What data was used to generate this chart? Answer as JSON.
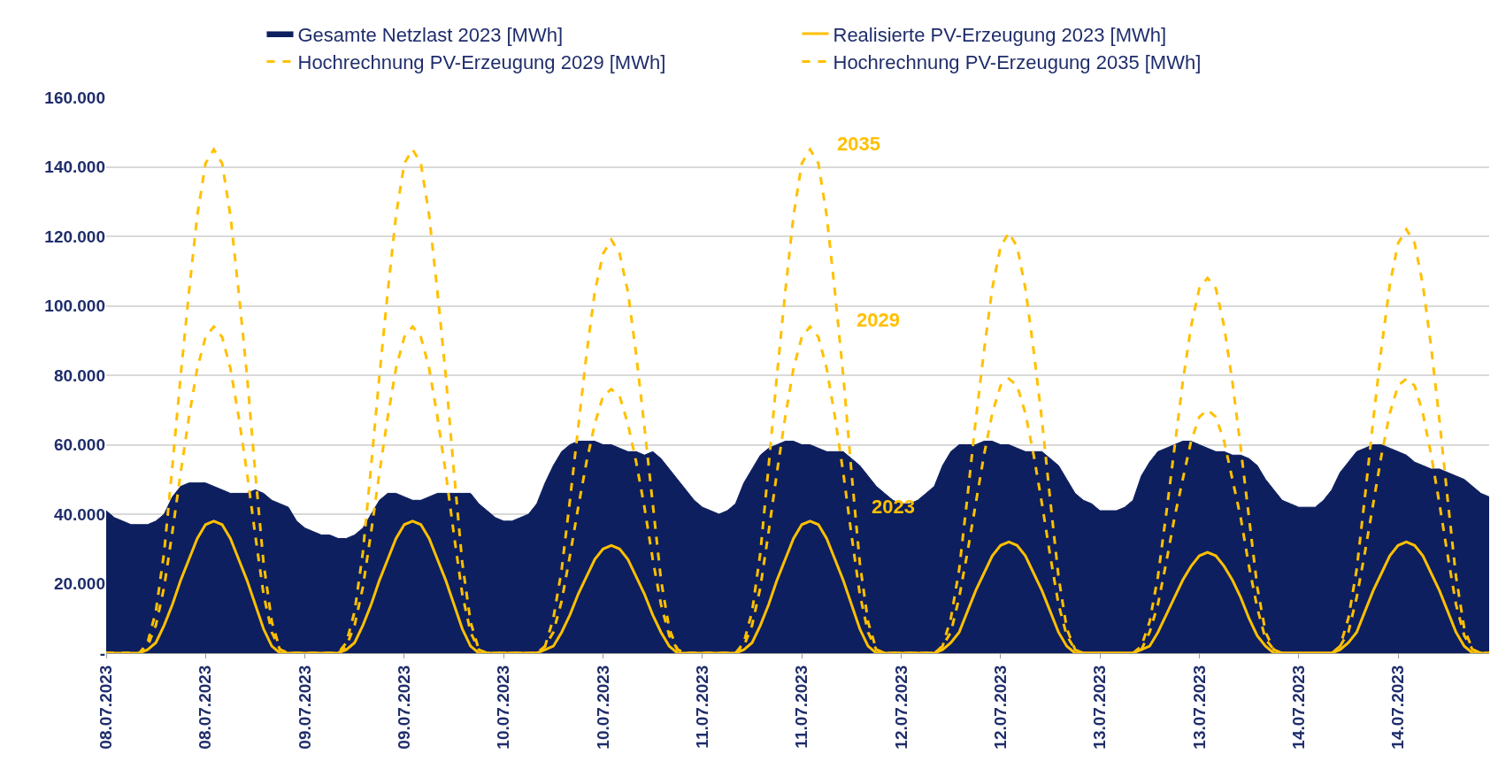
{
  "chart_data": {
    "type": "line",
    "x": [
      "2023-07-08T00:00",
      "2023-07-08T01:00",
      "2023-07-08T02:00",
      "2023-07-08T03:00",
      "2023-07-08T04:00",
      "2023-07-08T05:00",
      "2023-07-08T06:00",
      "2023-07-08T07:00",
      "2023-07-08T08:00",
      "2023-07-08T09:00",
      "2023-07-08T10:00",
      "2023-07-08T11:00",
      "2023-07-08T12:00",
      "2023-07-08T13:00",
      "2023-07-08T14:00",
      "2023-07-08T15:00",
      "2023-07-08T16:00",
      "2023-07-08T17:00",
      "2023-07-08T18:00",
      "2023-07-08T19:00",
      "2023-07-08T20:00",
      "2023-07-08T21:00",
      "2023-07-08T22:00",
      "2023-07-08T23:00",
      "2023-07-09T00:00",
      "2023-07-09T01:00",
      "2023-07-09T02:00",
      "2023-07-09T03:00",
      "2023-07-09T04:00",
      "2023-07-09T05:00",
      "2023-07-09T06:00",
      "2023-07-09T07:00",
      "2023-07-09T08:00",
      "2023-07-09T09:00",
      "2023-07-09T10:00",
      "2023-07-09T11:00",
      "2023-07-09T12:00",
      "2023-07-09T13:00",
      "2023-07-09T14:00",
      "2023-07-09T15:00",
      "2023-07-09T16:00",
      "2023-07-09T17:00",
      "2023-07-09T18:00",
      "2023-07-09T19:00",
      "2023-07-09T20:00",
      "2023-07-09T21:00",
      "2023-07-09T22:00",
      "2023-07-09T23:00",
      "2023-07-10T00:00",
      "2023-07-10T01:00",
      "2023-07-10T02:00",
      "2023-07-10T03:00",
      "2023-07-10T04:00",
      "2023-07-10T05:00",
      "2023-07-10T06:00",
      "2023-07-10T07:00",
      "2023-07-10T08:00",
      "2023-07-10T09:00",
      "2023-07-10T10:00",
      "2023-07-10T11:00",
      "2023-07-10T12:00",
      "2023-07-10T13:00",
      "2023-07-10T14:00",
      "2023-07-10T15:00",
      "2023-07-10T16:00",
      "2023-07-10T17:00",
      "2023-07-10T18:00",
      "2023-07-10T19:00",
      "2023-07-10T20:00",
      "2023-07-10T21:00",
      "2023-07-10T22:00",
      "2023-07-10T23:00",
      "2023-07-11T00:00",
      "2023-07-11T01:00",
      "2023-07-11T02:00",
      "2023-07-11T03:00",
      "2023-07-11T04:00",
      "2023-07-11T05:00",
      "2023-07-11T06:00",
      "2023-07-11T07:00",
      "2023-07-11T08:00",
      "2023-07-11T09:00",
      "2023-07-11T10:00",
      "2023-07-11T11:00",
      "2023-07-11T12:00",
      "2023-07-11T13:00",
      "2023-07-11T14:00",
      "2023-07-11T15:00",
      "2023-07-11T16:00",
      "2023-07-11T17:00",
      "2023-07-11T18:00",
      "2023-07-11T19:00",
      "2023-07-11T20:00",
      "2023-07-11T21:00",
      "2023-07-11T22:00",
      "2023-07-11T23:00",
      "2023-07-12T00:00",
      "2023-07-12T01:00",
      "2023-07-12T02:00",
      "2023-07-12T03:00",
      "2023-07-12T04:00",
      "2023-07-12T05:00",
      "2023-07-12T06:00",
      "2023-07-12T07:00",
      "2023-07-12T08:00",
      "2023-07-12T09:00",
      "2023-07-12T10:00",
      "2023-07-12T11:00",
      "2023-07-12T12:00",
      "2023-07-12T13:00",
      "2023-07-12T14:00",
      "2023-07-12T15:00",
      "2023-07-12T16:00",
      "2023-07-12T17:00",
      "2023-07-12T18:00",
      "2023-07-12T19:00",
      "2023-07-12T20:00",
      "2023-07-12T21:00",
      "2023-07-12T22:00",
      "2023-07-12T23:00",
      "2023-07-13T00:00",
      "2023-07-13T01:00",
      "2023-07-13T02:00",
      "2023-07-13T03:00",
      "2023-07-13T04:00",
      "2023-07-13T05:00",
      "2023-07-13T06:00",
      "2023-07-13T07:00",
      "2023-07-13T08:00",
      "2023-07-13T09:00",
      "2023-07-13T10:00",
      "2023-07-13T11:00",
      "2023-07-13T12:00",
      "2023-07-13T13:00",
      "2023-07-13T14:00",
      "2023-07-13T15:00",
      "2023-07-13T16:00",
      "2023-07-13T17:00",
      "2023-07-13T18:00",
      "2023-07-13T19:00",
      "2023-07-13T20:00",
      "2023-07-13T21:00",
      "2023-07-13T22:00",
      "2023-07-13T23:00",
      "2023-07-14T00:00",
      "2023-07-14T01:00",
      "2023-07-14T02:00",
      "2023-07-14T03:00",
      "2023-07-14T04:00",
      "2023-07-14T05:00",
      "2023-07-14T06:00",
      "2023-07-14T07:00",
      "2023-07-14T08:00",
      "2023-07-14T09:00",
      "2023-07-14T10:00",
      "2023-07-14T11:00",
      "2023-07-14T12:00",
      "2023-07-14T13:00",
      "2023-07-14T14:00",
      "2023-07-14T15:00",
      "2023-07-14T16:00",
      "2023-07-14T17:00",
      "2023-07-14T18:00",
      "2023-07-14T19:00",
      "2023-07-14T20:00",
      "2023-07-14T21:00",
      "2023-07-14T22:00",
      "2023-07-14T23:00"
    ],
    "series": [
      {
        "name": "Gesamte Netzlast 2023 [MWh]",
        "type": "area",
        "color": "#0d1f5e",
        "values": [
          41000,
          39000,
          38000,
          37000,
          37000,
          37000,
          38000,
          40000,
          45000,
          48000,
          49000,
          49000,
          49000,
          48000,
          47000,
          46000,
          46000,
          46000,
          47000,
          46000,
          44000,
          43000,
          42000,
          38000,
          36000,
          35000,
          34000,
          34000,
          33000,
          33000,
          34000,
          36000,
          40000,
          44000,
          46000,
          46000,
          45000,
          44000,
          44000,
          45000,
          46000,
          46000,
          46000,
          46000,
          46000,
          43000,
          41000,
          39000,
          38000,
          38000,
          39000,
          40000,
          43000,
          49000,
          54000,
          58000,
          60000,
          61000,
          61000,
          61000,
          60000,
          60000,
          59000,
          58000,
          58000,
          57000,
          58000,
          56000,
          53000,
          50000,
          47000,
          44000,
          42000,
          41000,
          40000,
          41000,
          43000,
          49000,
          53000,
          57000,
          59000,
          60000,
          61000,
          61000,
          60000,
          60000,
          59000,
          58000,
          58000,
          58000,
          56000,
          54000,
          51000,
          48000,
          46000,
          44000,
          43000,
          43000,
          44000,
          46000,
          48000,
          54000,
          58000,
          60000,
          60000,
          60000,
          61000,
          61000,
          60000,
          60000,
          59000,
          58000,
          58000,
          58000,
          56000,
          54000,
          50000,
          46000,
          44000,
          43000,
          41000,
          41000,
          41000,
          42000,
          44000,
          51000,
          55000,
          58000,
          59000,
          60000,
          61000,
          61000,
          60000,
          59000,
          58000,
          58000,
          57000,
          57000,
          56000,
          54000,
          50000,
          47000,
          44000,
          43000,
          42000,
          42000,
          42000,
          44000,
          47000,
          52000,
          55000,
          58000,
          59000,
          60000,
          60000,
          59000,
          58000,
          57000,
          55000,
          54000,
          53000,
          53000,
          52000,
          51000,
          50000,
          48000,
          46000,
          45000
        ]
      },
      {
        "name": "Realisierte PV-Erzeugung 2023 [MWh]",
        "line_style": "solid",
        "color": "#ffc000",
        "values": [
          0,
          0,
          0,
          0,
          0,
          1000,
          3000,
          8000,
          14000,
          21000,
          27000,
          33000,
          37000,
          38000,
          37000,
          33000,
          27000,
          21000,
          14000,
          7000,
          2000,
          0,
          0,
          0,
          0,
          0,
          0,
          0,
          0,
          1000,
          3000,
          8000,
          14000,
          21000,
          27000,
          33000,
          37000,
          38000,
          37000,
          33000,
          27000,
          21000,
          14000,
          7000,
          2000,
          0,
          0,
          0,
          0,
          0,
          0,
          0,
          0,
          1000,
          2000,
          6000,
          11000,
          17000,
          22000,
          27000,
          30000,
          31000,
          30000,
          27000,
          22000,
          17000,
          11000,
          6000,
          2000,
          0,
          0,
          0,
          0,
          0,
          0,
          0,
          0,
          1000,
          3000,
          8000,
          14000,
          21000,
          27000,
          33000,
          37000,
          38000,
          37000,
          33000,
          27000,
          21000,
          14000,
          7000,
          2000,
          0,
          0,
          0,
          0,
          0,
          0,
          0,
          0,
          1000,
          3000,
          6000,
          12000,
          18000,
          23000,
          28000,
          31000,
          32000,
          31000,
          28000,
          23000,
          18000,
          12000,
          6000,
          2000,
          0,
          0,
          0,
          0,
          0,
          0,
          0,
          0,
          1000,
          2000,
          6000,
          11000,
          16000,
          21000,
          25000,
          28000,
          29000,
          28000,
          25000,
          21000,
          16000,
          10000,
          5000,
          2000,
          0,
          0,
          0,
          0,
          0,
          0,
          0,
          0,
          1000,
          3000,
          6000,
          12000,
          18000,
          23000,
          28000,
          31000,
          32000,
          31000,
          28000,
          23000,
          18000,
          12000,
          6000,
          2000,
          0,
          0,
          0
        ]
      },
      {
        "name": "Hochrechnung PV-Erzeugung 2029 [MWh]",
        "line_style": "dashed",
        "color": "#ffc000",
        "values": [
          0,
          0,
          0,
          0,
          0,
          2000,
          8000,
          19000,
          35000,
          52000,
          68000,
          82000,
          91000,
          94000,
          91000,
          82000,
          68000,
          52000,
          34000,
          17000,
          6000,
          1000,
          0,
          0,
          0,
          0,
          0,
          0,
          0,
          2000,
          8000,
          19000,
          35000,
          52000,
          68000,
          82000,
          91000,
          94000,
          91000,
          82000,
          68000,
          52000,
          34000,
          17000,
          6000,
          1000,
          0,
          0,
          0,
          0,
          0,
          0,
          0,
          2000,
          6000,
          15000,
          28000,
          42000,
          55000,
          66000,
          74000,
          76000,
          74000,
          66000,
          55000,
          42000,
          27000,
          14000,
          5000,
          1000,
          0,
          0,
          0,
          0,
          0,
          0,
          0,
          2000,
          8000,
          19000,
          35000,
          52000,
          68000,
          82000,
          91000,
          94000,
          91000,
          82000,
          68000,
          52000,
          34000,
          17000,
          6000,
          1000,
          0,
          0,
          0,
          0,
          0,
          0,
          0,
          2000,
          6000,
          16000,
          29000,
          43000,
          57000,
          69000,
          77000,
          79000,
          77000,
          69000,
          57000,
          43000,
          28000,
          14000,
          5000,
          1000,
          0,
          0,
          0,
          0,
          0,
          0,
          0,
          1000,
          6000,
          14000,
          26000,
          39000,
          50000,
          61000,
          68000,
          70000,
          68000,
          61000,
          50000,
          39000,
          25000,
          13000,
          4000,
          1000,
          0,
          0,
          0,
          0,
          0,
          0,
          0,
          2000,
          6000,
          16000,
          29000,
          43000,
          57000,
          69000,
          77000,
          79000,
          77000,
          69000,
          57000,
          43000,
          28000,
          14000,
          5000,
          1000,
          0,
          0
        ]
      },
      {
        "name": "Hochrechnung PV-Erzeugung 2035 [MWh]",
        "line_style": "dashed",
        "color": "#ffc000",
        "values": [
          0,
          0,
          0,
          0,
          0,
          3000,
          12000,
          29000,
          54000,
          80000,
          104000,
          126000,
          141000,
          145000,
          141000,
          126000,
          104000,
          80000,
          52000,
          26000,
          9000,
          1000,
          0,
          0,
          0,
          0,
          0,
          0,
          0,
          3000,
          12000,
          29000,
          54000,
          80000,
          104000,
          126000,
          141000,
          145000,
          141000,
          126000,
          104000,
          80000,
          52000,
          26000,
          9000,
          1000,
          0,
          0,
          0,
          0,
          0,
          0,
          0,
          2000,
          10000,
          24000,
          44000,
          65000,
          86000,
          104000,
          115000,
          119000,
          115000,
          104000,
          86000,
          65000,
          43000,
          21000,
          7000,
          1000,
          0,
          0,
          0,
          0,
          0,
          0,
          0,
          3000,
          12000,
          29000,
          54000,
          80000,
          104000,
          126000,
          141000,
          145000,
          141000,
          126000,
          104000,
          80000,
          52000,
          26000,
          9000,
          1000,
          0,
          0,
          0,
          0,
          0,
          0,
          0,
          2000,
          10000,
          24000,
          45000,
          67000,
          87000,
          105000,
          117000,
          121000,
          117000,
          105000,
          87000,
          67000,
          44000,
          22000,
          7000,
          1000,
          0,
          0,
          0,
          0,
          0,
          0,
          0,
          2000,
          9000,
          22000,
          40000,
          59000,
          78000,
          94000,
          105000,
          108000,
          105000,
          94000,
          78000,
          59000,
          39000,
          19000,
          6000,
          1000,
          0,
          0,
          0,
          0,
          0,
          0,
          0,
          2000,
          10000,
          24000,
          45000,
          67000,
          88000,
          106000,
          118000,
          122000,
          118000,
          106000,
          88000,
          67000,
          44000,
          22000,
          7000,
          1000,
          0,
          0
        ]
      }
    ],
    "annotations": [
      "2035",
      "2029",
      "2023"
    ],
    "xlim": [
      "2023-07-08T00:00",
      "2023-07-14T23:00"
    ],
    "xticks": [
      {
        "value": "2023-07-08T00:00",
        "label": "08.07.2023"
      },
      {
        "value": "2023-07-08T12:00",
        "label": "08.07.2023"
      },
      {
        "value": "2023-07-09T00:00",
        "label": "09.07.2023"
      },
      {
        "value": "2023-07-09T12:00",
        "label": "09.07.2023"
      },
      {
        "value": "2023-07-10T00:00",
        "label": "10.07.2023"
      },
      {
        "value": "2023-07-10T12:00",
        "label": "10.07.2023"
      },
      {
        "value": "2023-07-11T00:00",
        "label": "11.07.2023"
      },
      {
        "value": "2023-07-11T12:00",
        "label": "11.07.2023"
      },
      {
        "value": "2023-07-12T00:00",
        "label": "12.07.2023"
      },
      {
        "value": "2023-07-12T12:00",
        "label": "12.07.2023"
      },
      {
        "value": "2023-07-13T00:00",
        "label": "13.07.2023"
      },
      {
        "value": "2023-07-13T12:00",
        "label": "13.07.2023"
      },
      {
        "value": "2023-07-14T00:00",
        "label": "14.07.2023"
      },
      {
        "value": "2023-07-14T12:00",
        "label": "14.07.2023"
      }
    ],
    "ylim": [
      0,
      160000
    ],
    "yticks": [
      {
        "value": 0,
        "label": "-"
      },
      {
        "value": 20000,
        "label": "20.000"
      },
      {
        "value": 40000,
        "label": "40.000"
      },
      {
        "value": 60000,
        "label": "60.000"
      },
      {
        "value": 80000,
        "label": "80.000"
      },
      {
        "value": 100000,
        "label": "100.000"
      },
      {
        "value": 120000,
        "label": "120.000"
      },
      {
        "value": 140000,
        "label": "140.000"
      },
      {
        "value": 160000,
        "label": "160.000"
      }
    ],
    "grid": "y",
    "legend": "top",
    "marker": "none"
  }
}
